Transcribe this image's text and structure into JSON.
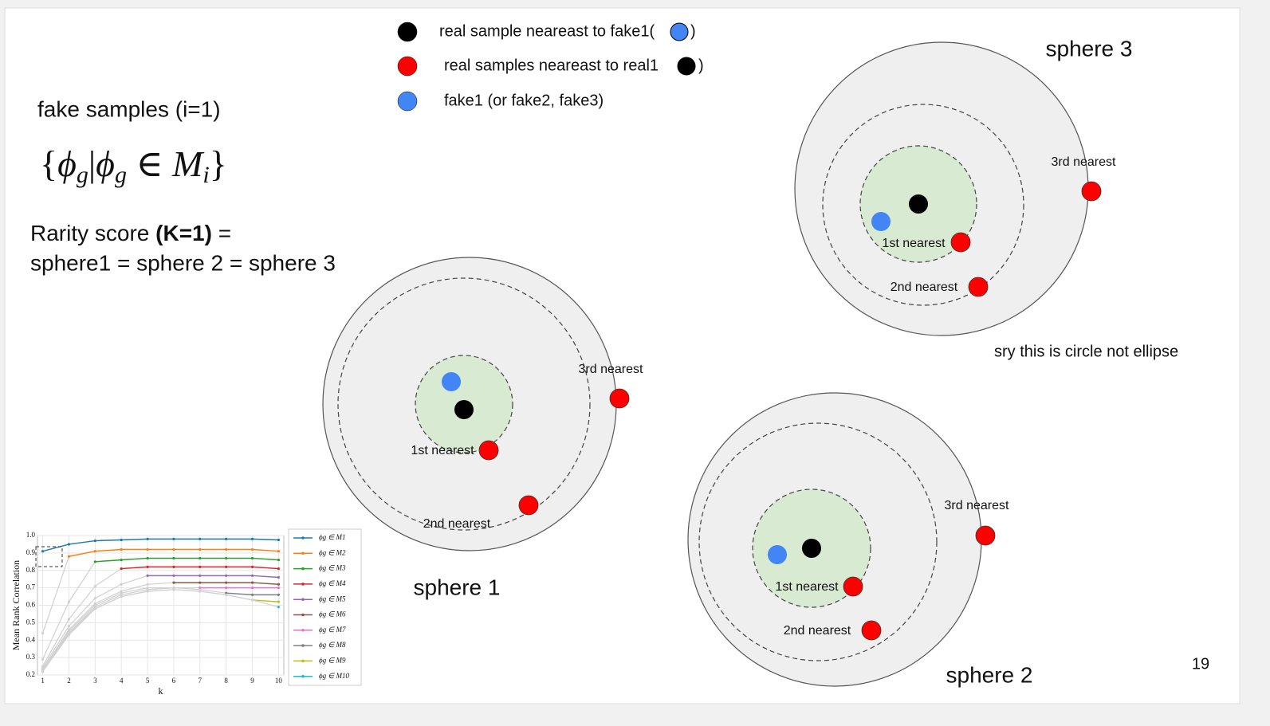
{
  "legend": [
    {
      "label": "real sample neareast to fake1(",
      "after": ")"
    },
    {
      "label": "real samples neareast to real1",
      "after": " )"
    },
    {
      "label": "fake1 (or fake2, fake3)"
    }
  ],
  "heading": "fake samples (i=1)",
  "formula": [
    {
      "text": "{"
    },
    {
      "text": "ϕ",
      "sub": "g"
    },
    {
      "text": "|"
    },
    {
      "text": "ϕ",
      "sub": "g"
    },
    {
      "text": " ∈ "
    },
    {
      "text": "M",
      "sub": "i"
    },
    {
      "text": "}"
    }
  ],
  "rarity": {
    "line1": "Rarity score ",
    "bold": "(K=1)",
    "line1_end": " =",
    "line2": "sphere1 = sphere 2 = sphere 3"
  },
  "spheres": [
    {
      "name": "sphere 1",
      "labels": [
        "1st nearest",
        "2nd nearest",
        "3rd nearest"
      ]
    },
    {
      "name": "sphere 2",
      "labels": [
        "1st nearest",
        "2nd nearest",
        "3rd nearest"
      ]
    },
    {
      "name": "sphere 3",
      "labels": [
        "1st nearest",
        "2nd nearest",
        "3rd nearest"
      ]
    }
  ],
  "note": "sry this is circle not ellipse",
  "page_number": "19",
  "chart_data": {
    "type": "line",
    "xlabel": "k",
    "ylabel": "Mean Rank Correlation",
    "x": [
      1,
      2,
      3,
      4,
      5,
      6,
      7,
      8,
      9,
      10
    ],
    "xlim": [
      0.8,
      10.2
    ],
    "ylim": [
      0.2,
      1.0
    ],
    "xticks": [
      1,
      2,
      3,
      4,
      5,
      6,
      7,
      8,
      9,
      10
    ],
    "yticks": [
      0.2,
      0.3,
      0.4,
      0.5,
      0.6,
      0.7,
      0.8,
      0.9,
      {
        "value": 1,
        "label": "1.0"
      }
    ],
    "grid": true,
    "series": [
      {
        "name": "ϕg ∈ M1",
        "color": "#1f77b4",
        "values": [
          0.91,
          0.95,
          0.97,
          0.975,
          0.98,
          0.98,
          0.98,
          0.98,
          0.98,
          0.975
        ]
      },
      {
        "name": "ϕg ∈ M2",
        "color": "#ff7f0e",
        "values": [
          0.44,
          0.88,
          0.91,
          0.92,
          0.92,
          0.92,
          0.92,
          0.92,
          0.92,
          0.91
        ]
      },
      {
        "name": "ϕg ∈ M3",
        "color": "#2ca02c",
        "values": [
          0.29,
          0.62,
          0.85,
          0.86,
          0.87,
          0.87,
          0.87,
          0.87,
          0.87,
          0.86
        ]
      },
      {
        "name": "ϕg ∈ M4",
        "color": "#d62728",
        "values": [
          0.25,
          0.52,
          0.71,
          0.81,
          0.82,
          0.82,
          0.82,
          0.82,
          0.82,
          0.81
        ]
      },
      {
        "name": "ϕg ∈ M5",
        "color": "#9467bd",
        "values": [
          0.24,
          0.48,
          0.64,
          0.72,
          0.77,
          0.77,
          0.77,
          0.77,
          0.77,
          0.76
        ]
      },
      {
        "name": "ϕg ∈ M6",
        "color": "#8c564b",
        "values": [
          0.23,
          0.46,
          0.61,
          0.68,
          0.72,
          0.73,
          0.73,
          0.73,
          0.73,
          0.72
        ]
      },
      {
        "name": "ϕg ∈ M7",
        "color": "#e377c2",
        "values": [
          0.23,
          0.45,
          0.6,
          0.67,
          0.7,
          0.7,
          0.7,
          0.7,
          0.7,
          0.7
        ]
      },
      {
        "name": "ϕg ∈ M8",
        "color": "#7f7f7f",
        "values": [
          0.22,
          0.44,
          0.59,
          0.66,
          0.69,
          0.7,
          0.69,
          0.67,
          0.66,
          0.66
        ]
      },
      {
        "name": "ϕg ∈ M9",
        "color": "#bcbd22",
        "values": [
          0.22,
          0.44,
          0.58,
          0.65,
          0.68,
          0.69,
          0.68,
          0.66,
          0.63,
          0.62
        ]
      },
      {
        "name": "ϕg ∈ M10",
        "color": "#17becf",
        "values": [
          0.22,
          0.43,
          0.58,
          0.65,
          0.68,
          0.69,
          0.68,
          0.66,
          0.63,
          0.59
        ]
      }
    ]
  }
}
